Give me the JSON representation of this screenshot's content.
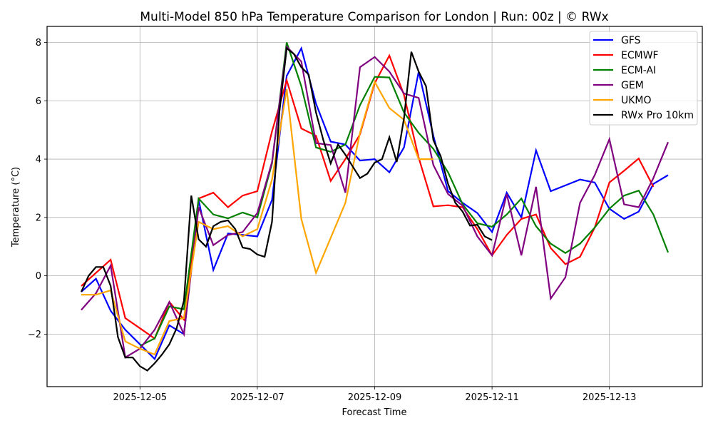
{
  "chart_data": {
    "type": "line",
    "title": "Multi-Model 850 hPa Temperature Comparison for London | Run: 00z | © RWx",
    "xlabel": "Forecast Time",
    "ylabel": "Temperature (°C)",
    "x_start": "2025-12-04T00:00",
    "x_unit": "hours",
    "xlim_hours": [
      -14,
      254
    ],
    "ylim": [
      -3.8,
      8.55
    ],
    "x_ticks": [
      {
        "label": "2025-12-05",
        "hours": 24
      },
      {
        "label": "2025-12-07",
        "hours": 72
      },
      {
        "label": "2025-12-09",
        "hours": 120
      },
      {
        "label": "2025-12-11",
        "hours": 168
      },
      {
        "label": "2025-12-13",
        "hours": 216
      }
    ],
    "y_ticks": [
      -2,
      0,
      2,
      4,
      6,
      8
    ],
    "y_tick_labels": [
      "−2",
      "0",
      "2",
      "4",
      "6",
      "8"
    ],
    "grid": true,
    "legend_position": "top-right",
    "series": [
      {
        "name": "GFS",
        "color": "#0000ff",
        "hours": [
          0,
          6,
          12,
          18,
          24,
          30,
          36,
          42,
          48,
          54,
          60,
          66,
          72,
          78,
          84,
          90,
          96,
          102,
          108,
          114,
          120,
          126,
          132,
          138,
          144,
          150,
          156,
          162,
          168,
          174,
          180,
          186,
          192,
          198,
          204,
          210,
          216,
          222,
          228,
          234,
          240
        ],
        "values": [
          -0.55,
          -0.1,
          -1.2,
          -1.85,
          -2.35,
          -2.85,
          -1.7,
          -2.0,
          2.6,
          0.2,
          1.45,
          1.4,
          1.35,
          2.6,
          6.85,
          7.8,
          5.9,
          4.6,
          4.5,
          3.95,
          4.0,
          3.55,
          4.4,
          7.0,
          4.8,
          2.9,
          2.5,
          2.15,
          1.5,
          2.85,
          2.0,
          4.3,
          2.9,
          3.1,
          3.3,
          3.2,
          2.3,
          1.95,
          2.2,
          3.15,
          3.45
        ]
      },
      {
        "name": "ECMWF",
        "color": "#ff0000",
        "hours": [
          0,
          12,
          18,
          24,
          30,
          36,
          42,
          48,
          54,
          60,
          66,
          72,
          78,
          84,
          90,
          96,
          102,
          108,
          114,
          120,
          126,
          132,
          138,
          144,
          150,
          156,
          162,
          168,
          174,
          180,
          186,
          192,
          198,
          204,
          210,
          216,
          222,
          228,
          234
        ],
        "values": [
          -0.35,
          0.55,
          -1.45,
          -1.8,
          -2.15,
          -0.9,
          -1.5,
          2.65,
          2.85,
          2.35,
          2.75,
          2.9,
          4.95,
          6.7,
          5.05,
          4.8,
          3.25,
          4.0,
          4.85,
          6.6,
          7.55,
          6.2,
          4.05,
          2.38,
          2.42,
          2.35,
          1.6,
          0.7,
          1.4,
          1.95,
          2.1,
          0.95,
          0.4,
          0.65,
          1.65,
          3.2,
          3.6,
          4.02,
          3.05
        ]
      },
      {
        "name": "ECM-AI",
        "color": "#008000",
        "hours": [
          24,
          30,
          36,
          42,
          48,
          54,
          60,
          66,
          72,
          78,
          84,
          90,
          96,
          102,
          108,
          114,
          120,
          126,
          132,
          138,
          144,
          150,
          156,
          162,
          168,
          174,
          180,
          186,
          192,
          198,
          204,
          210,
          216,
          222,
          228,
          234,
          240
        ],
        "values": [
          -2.4,
          -2.15,
          -1.05,
          -1.15,
          2.65,
          2.1,
          1.97,
          2.17,
          2.0,
          3.85,
          8.0,
          6.5,
          4.4,
          4.25,
          4.5,
          5.85,
          6.82,
          6.8,
          5.6,
          4.9,
          4.35,
          3.55,
          2.45,
          1.8,
          1.68,
          2.1,
          2.65,
          1.7,
          1.1,
          0.78,
          1.1,
          1.65,
          2.3,
          2.75,
          2.92,
          2.1,
          0.8
        ]
      },
      {
        "name": "GEM",
        "color": "#800080",
        "hours": [
          0,
          6,
          12,
          18,
          24,
          30,
          36,
          42,
          48,
          54,
          60,
          66,
          72,
          78,
          84,
          90,
          96,
          102,
          108,
          114,
          120,
          126,
          132,
          138,
          144,
          150,
          156,
          162,
          168,
          174,
          180,
          186,
          192,
          198,
          204,
          210,
          216,
          222,
          228,
          234,
          240
        ],
        "values": [
          -1.17,
          -0.6,
          0.35,
          -2.8,
          -2.5,
          -1.85,
          -0.9,
          -2.0,
          2.35,
          1.05,
          1.4,
          1.5,
          2.15,
          3.9,
          7.85,
          7.35,
          4.55,
          4.48,
          2.85,
          7.15,
          7.5,
          7.0,
          6.25,
          6.1,
          3.8,
          2.8,
          2.4,
          1.35,
          0.7,
          2.8,
          0.7,
          3.05,
          -0.78,
          -0.05,
          2.5,
          3.45,
          4.68,
          2.45,
          2.35,
          3.35,
          4.58
        ]
      },
      {
        "name": "UKMO",
        "color": "#ffa500",
        "hours": [
          0,
          6,
          12,
          18,
          24,
          30,
          36,
          42,
          48,
          54,
          60,
          66,
          72,
          78,
          84,
          90,
          96,
          102,
          108,
          114,
          120,
          126,
          132,
          138,
          144
        ],
        "values": [
          -0.65,
          -0.65,
          -0.5,
          -2.25,
          -2.5,
          -2.7,
          -1.55,
          -1.45,
          1.85,
          1.6,
          1.7,
          1.35,
          1.6,
          3.3,
          6.4,
          1.95,
          0.1,
          1.3,
          2.5,
          4.9,
          6.65,
          5.75,
          5.35,
          4.0,
          4.0
        ]
      },
      {
        "name": "RWx Pro 10km",
        "color": "#000000",
        "hours": [
          0,
          3,
          6,
          9,
          12,
          15,
          18,
          21,
          24,
          27,
          30,
          33,
          36,
          39,
          42,
          45,
          48,
          51,
          54,
          57,
          60,
          63,
          66,
          69,
          72,
          75,
          78,
          81,
          84,
          87,
          90,
          93,
          96,
          99,
          102,
          105,
          108,
          111,
          114,
          117,
          120,
          123,
          126,
          129,
          132,
          135,
          138,
          141,
          144,
          147,
          150,
          153,
          156,
          159,
          162,
          165,
          168
        ],
        "values": [
          -0.55,
          0.0,
          0.3,
          0.3,
          -0.35,
          -2.1,
          -2.8,
          -2.8,
          -3.1,
          -3.25,
          -3.0,
          -2.7,
          -2.35,
          -1.8,
          -0.85,
          2.75,
          1.25,
          1.0,
          1.7,
          1.85,
          1.9,
          1.6,
          0.97,
          0.92,
          0.73,
          0.65,
          1.85,
          5.6,
          7.8,
          7.6,
          7.15,
          6.9,
          5.6,
          4.65,
          3.85,
          4.5,
          4.15,
          3.75,
          3.35,
          3.5,
          3.88,
          4.0,
          4.75,
          3.9,
          5.4,
          7.68,
          7.0,
          6.5,
          4.65,
          4.1,
          3.15,
          2.5,
          2.2,
          1.72,
          1.75,
          1.35,
          1.22
        ]
      }
    ]
  }
}
